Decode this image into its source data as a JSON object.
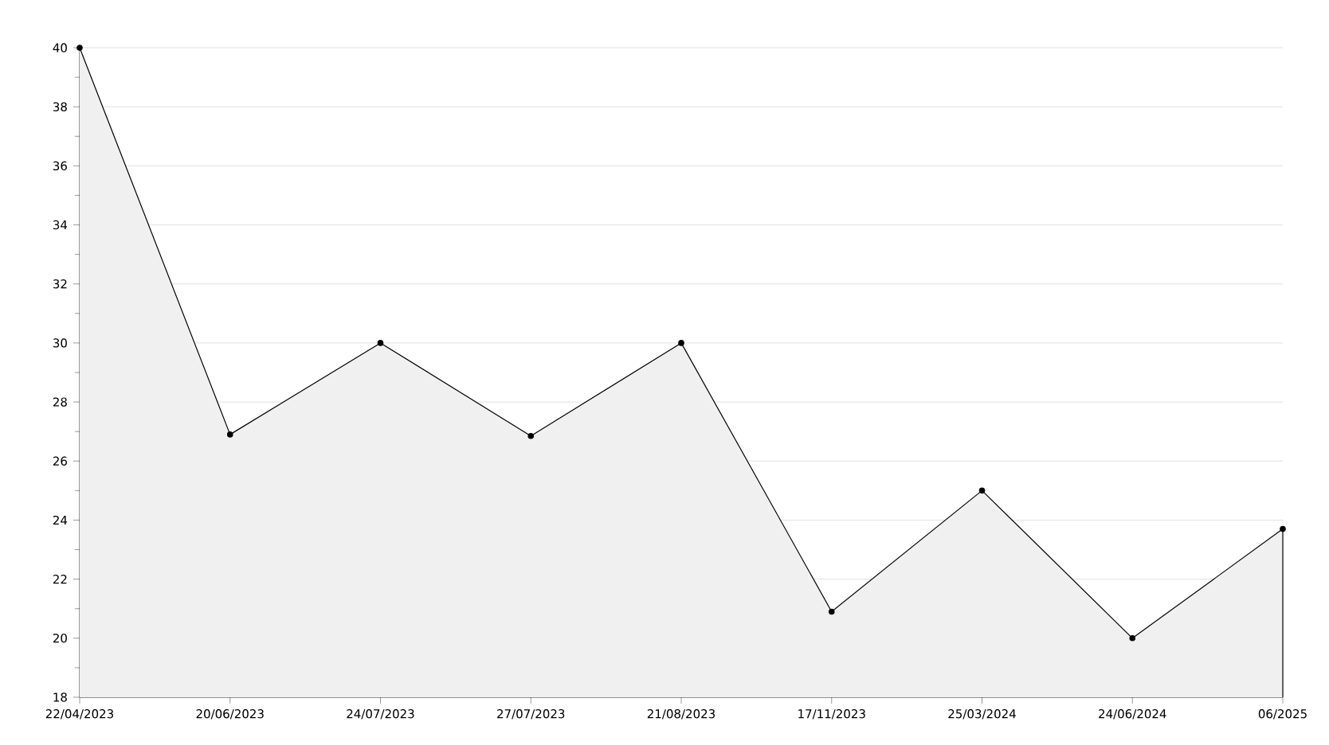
{
  "chart_data": {
    "type": "area",
    "categories": [
      "22/04/2023",
      "20/06/2023",
      "24/07/2023",
      "27/07/2023",
      "21/08/2023",
      "17/11/2023",
      "25/03/2024",
      "24/06/2024",
      "06/2025"
    ],
    "values": [
      40,
      26.9,
      30,
      26.85,
      30,
      20.9,
      25,
      20,
      23.7
    ],
    "color": "#000000",
    "ylim": [
      18,
      40
    ],
    "yticks": [
      18,
      20,
      22,
      24,
      26,
      28,
      30,
      32,
      34,
      36,
      38,
      40
    ],
    "grid": "y",
    "marker": "circle"
  }
}
